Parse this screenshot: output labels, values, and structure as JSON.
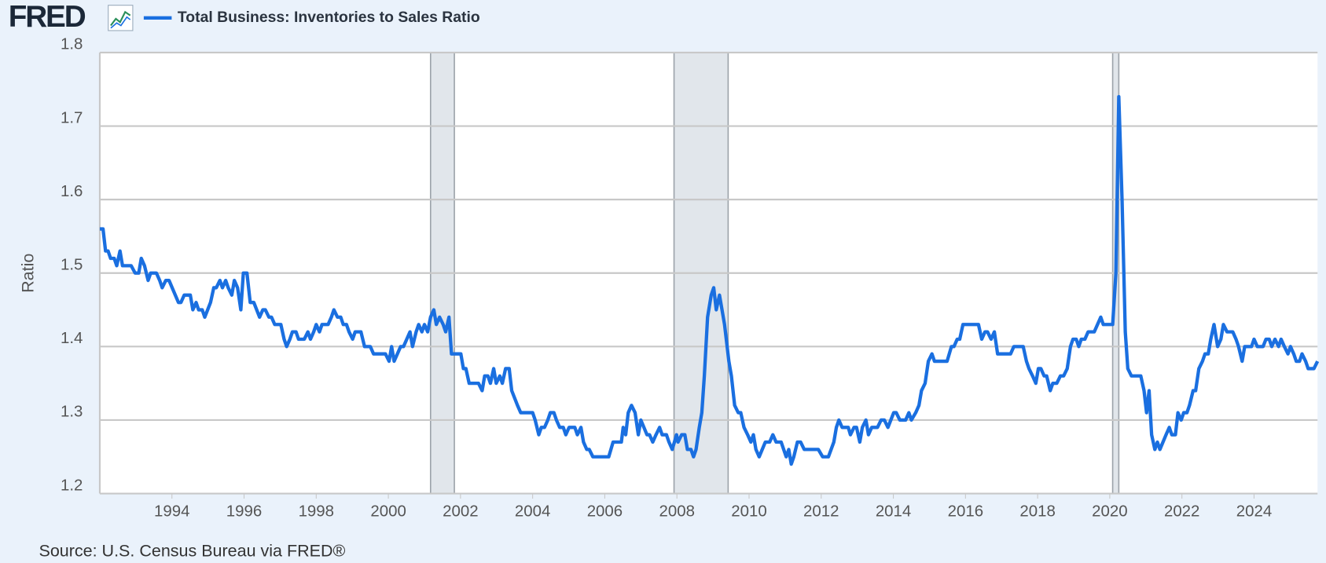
{
  "logo": "FRED",
  "source": "Source: U.S. Census Bureau via FRED®",
  "chart_data": {
    "type": "line",
    "ylabel": "Ratio",
    "xlim": [
      1992.0,
      2025.76
    ],
    "ylim": [
      1.2,
      1.8
    ],
    "xticks": [
      1994,
      1996,
      1998,
      2000,
      2002,
      2004,
      2006,
      2008,
      2010,
      2012,
      2014,
      2016,
      2018,
      2020,
      2022,
      2024
    ],
    "yticks": [
      1.2,
      1.3,
      1.4,
      1.5,
      1.6,
      1.7,
      1.8
    ],
    "grid": true,
    "recessions": [
      [
        2001.17,
        2001.83
      ],
      [
        2007.92,
        2009.42
      ],
      [
        2020.08,
        2020.25
      ]
    ],
    "x": [
      1992.0,
      1992.09,
      1992.16,
      1992.23,
      1992.3,
      1992.4,
      1992.47,
      1992.56,
      1992.63,
      1992.87,
      1992.98,
      1993.08,
      1993.15,
      1993.24,
      1993.34,
      1993.41,
      1993.57,
      1993.66,
      1993.73,
      1993.83,
      1993.92,
      1994.18,
      1994.25,
      1994.34,
      1994.51,
      1994.58,
      1994.67,
      1994.74,
      1994.84,
      1994.91,
      1995.07,
      1995.16,
      1995.23,
      1995.33,
      1995.4,
      1995.49,
      1995.56,
      1995.66,
      1995.73,
      1995.82,
      1995.91,
      1995.98,
      1996.08,
      1996.17,
      1996.27,
      1996.43,
      1996.52,
      1996.59,
      1996.69,
      1996.76,
      1996.85,
      1997.02,
      1997.11,
      1997.18,
      1997.27,
      1997.34,
      1997.44,
      1997.51,
      1997.67,
      1997.77,
      1997.84,
      1997.93,
      1998.0,
      1998.09,
      1998.16,
      1998.33,
      1998.42,
      1998.49,
      1998.59,
      1998.68,
      1998.75,
      1998.84,
      1998.91,
      1999.01,
      1999.08,
      1999.24,
      1999.34,
      1999.5,
      1999.59,
      1999.92,
      2000.02,
      2000.09,
      2000.16,
      2000.25,
      2000.34,
      2000.42,
      2000.51,
      2000.6,
      2000.67,
      2000.77,
      2000.84,
      2000.93,
      2001.0,
      2001.09,
      2001.17,
      2001.26,
      2001.33,
      2001.42,
      2001.52,
      2001.59,
      2001.68,
      2001.75,
      2002.01,
      2002.08,
      2002.15,
      2002.24,
      2002.5,
      2002.6,
      2002.67,
      2002.76,
      2002.83,
      2002.92,
      2002.99,
      2003.09,
      2003.16,
      2003.25,
      2003.35,
      2003.42,
      2003.58,
      2003.67,
      2004.0,
      2004.07,
      2004.17,
      2004.24,
      2004.33,
      2004.42,
      2004.49,
      2004.59,
      2004.66,
      2004.75,
      2004.85,
      2004.92,
      2005.01,
      2005.17,
      2005.24,
      2005.34,
      2005.41,
      2005.5,
      2005.57,
      2005.67,
      2006.11,
      2006.23,
      2006.46,
      2006.51,
      2006.58,
      2006.65,
      2006.74,
      2006.84,
      2006.93,
      2007.0,
      2007.17,
      2007.24,
      2007.33,
      2007.42,
      2007.52,
      2007.59,
      2007.71,
      2007.78,
      2007.87,
      2007.99,
      2008.03,
      2008.13,
      2008.22,
      2008.29,
      2008.39,
      2008.46,
      2008.53,
      2008.62,
      2008.69,
      2008.76,
      2008.85,
      2008.95,
      2009.02,
      2009.09,
      2009.18,
      2009.25,
      2009.32,
      2009.44,
      2009.51,
      2009.6,
      2009.7,
      2009.77,
      2009.86,
      2009.96,
      2010.05,
      2010.12,
      2010.19,
      2010.28,
      2010.45,
      2010.57,
      2010.66,
      2010.75,
      2010.89,
      2011.03,
      2011.1,
      2011.17,
      2011.24,
      2011.34,
      2011.43,
      2011.53,
      2011.92,
      2012.04,
      2012.2,
      2012.35,
      2012.42,
      2012.49,
      2012.58,
      2012.75,
      2012.81,
      2012.91,
      2012.98,
      2013.07,
      2013.14,
      2013.24,
      2013.31,
      2013.4,
      2013.56,
      2013.66,
      2013.75,
      2013.85,
      2014.01,
      2014.08,
      2014.18,
      2014.34,
      2014.43,
      2014.5,
      2014.62,
      2014.71,
      2014.78,
      2014.88,
      2014.97,
      2015.07,
      2015.14,
      2015.49,
      2015.61,
      2015.68,
      2015.77,
      2015.84,
      2015.93,
      2016.36,
      2016.45,
      2016.54,
      2016.61,
      2016.71,
      2016.8,
      2016.89,
      2017.25,
      2017.34,
      2017.6,
      2017.69,
      2017.76,
      2017.86,
      2017.95,
      2018.02,
      2018.09,
      2018.18,
      2018.25,
      2018.35,
      2018.42,
      2018.53,
      2018.63,
      2018.72,
      2018.82,
      2018.91,
      2018.98,
      2019.07,
      2019.14,
      2019.21,
      2019.31,
      2019.4,
      2019.57,
      2019.66,
      2019.75,
      2019.82,
      2020.08,
      2020.17,
      2020.25,
      2020.34,
      2020.43,
      2020.5,
      2020.6,
      2020.86,
      2020.95,
      2021.02,
      2021.09,
      2021.16,
      2021.25,
      2021.32,
      2021.39,
      2021.56,
      2021.65,
      2021.72,
      2021.82,
      2021.89,
      2021.98,
      2022.05,
      2022.14,
      2022.21,
      2022.31,
      2022.38,
      2022.47,
      2022.57,
      2022.64,
      2022.73,
      2022.8,
      2022.89,
      2022.99,
      2023.08,
      2023.15,
      2023.25,
      2023.41,
      2023.5,
      2023.57,
      2023.67,
      2023.74,
      2023.93,
      2024.0,
      2024.09,
      2024.25,
      2024.33,
      2024.42,
      2024.49,
      2024.58,
      2024.68,
      2024.75,
      2024.84,
      2024.94,
      2025.01,
      2025.1,
      2025.17,
      2025.26,
      2025.33,
      2025.43,
      2025.5,
      2025.66,
      2025.76
    ],
    "series": [
      {
        "name": "Total Business: Inventories to Sales Ratio",
        "color": "#1a6fe0",
        "values": [
          1.56,
          1.56,
          1.53,
          1.53,
          1.52,
          1.52,
          1.51,
          1.53,
          1.51,
          1.51,
          1.5,
          1.5,
          1.52,
          1.51,
          1.49,
          1.5,
          1.5,
          1.49,
          1.48,
          1.49,
          1.49,
          1.46,
          1.46,
          1.47,
          1.47,
          1.45,
          1.46,
          1.45,
          1.45,
          1.44,
          1.46,
          1.48,
          1.48,
          1.49,
          1.48,
          1.49,
          1.48,
          1.47,
          1.49,
          1.48,
          1.45,
          1.5,
          1.5,
          1.46,
          1.46,
          1.44,
          1.45,
          1.45,
          1.44,
          1.44,
          1.43,
          1.43,
          1.41,
          1.4,
          1.41,
          1.42,
          1.42,
          1.41,
          1.41,
          1.42,
          1.41,
          1.42,
          1.43,
          1.42,
          1.43,
          1.43,
          1.44,
          1.45,
          1.44,
          1.44,
          1.43,
          1.43,
          1.42,
          1.41,
          1.42,
          1.42,
          1.4,
          1.4,
          1.39,
          1.39,
          1.38,
          1.4,
          1.38,
          1.39,
          1.4,
          1.4,
          1.41,
          1.42,
          1.4,
          1.42,
          1.43,
          1.42,
          1.43,
          1.42,
          1.44,
          1.45,
          1.43,
          1.44,
          1.43,
          1.42,
          1.44,
          1.39,
          1.39,
          1.37,
          1.37,
          1.35,
          1.35,
          1.34,
          1.36,
          1.36,
          1.35,
          1.37,
          1.35,
          1.36,
          1.35,
          1.37,
          1.37,
          1.34,
          1.32,
          1.31,
          1.31,
          1.3,
          1.28,
          1.29,
          1.29,
          1.3,
          1.31,
          1.31,
          1.3,
          1.29,
          1.29,
          1.28,
          1.29,
          1.29,
          1.28,
          1.29,
          1.27,
          1.26,
          1.26,
          1.25,
          1.25,
          1.27,
          1.27,
          1.29,
          1.28,
          1.31,
          1.32,
          1.31,
          1.28,
          1.3,
          1.28,
          1.28,
          1.27,
          1.28,
          1.29,
          1.28,
          1.28,
          1.27,
          1.26,
          1.28,
          1.27,
          1.28,
          1.28,
          1.26,
          1.26,
          1.25,
          1.26,
          1.29,
          1.31,
          1.36,
          1.44,
          1.47,
          1.48,
          1.45,
          1.47,
          1.45,
          1.43,
          1.38,
          1.36,
          1.32,
          1.31,
          1.31,
          1.29,
          1.28,
          1.27,
          1.28,
          1.26,
          1.25,
          1.27,
          1.27,
          1.28,
          1.27,
          1.27,
          1.25,
          1.26,
          1.24,
          1.25,
          1.27,
          1.27,
          1.26,
          1.26,
          1.25,
          1.25,
          1.27,
          1.29,
          1.3,
          1.29,
          1.29,
          1.28,
          1.29,
          1.29,
          1.27,
          1.29,
          1.3,
          1.28,
          1.29,
          1.29,
          1.3,
          1.3,
          1.29,
          1.31,
          1.31,
          1.3,
          1.3,
          1.31,
          1.3,
          1.31,
          1.32,
          1.34,
          1.35,
          1.38,
          1.39,
          1.38,
          1.38,
          1.4,
          1.4,
          1.41,
          1.41,
          1.43,
          1.43,
          1.41,
          1.42,
          1.42,
          1.41,
          1.42,
          1.39,
          1.39,
          1.4,
          1.4,
          1.38,
          1.37,
          1.36,
          1.35,
          1.37,
          1.37,
          1.36,
          1.36,
          1.34,
          1.35,
          1.35,
          1.36,
          1.36,
          1.37,
          1.4,
          1.41,
          1.41,
          1.4,
          1.41,
          1.41,
          1.42,
          1.42,
          1.43,
          1.44,
          1.43,
          1.43,
          1.5,
          1.74,
          1.6,
          1.42,
          1.37,
          1.36,
          1.36,
          1.34,
          1.31,
          1.34,
          1.28,
          1.26,
          1.27,
          1.26,
          1.28,
          1.29,
          1.28,
          1.28,
          1.31,
          1.3,
          1.31,
          1.31,
          1.32,
          1.34,
          1.34,
          1.37,
          1.38,
          1.39,
          1.39,
          1.41,
          1.43,
          1.4,
          1.41,
          1.43,
          1.42,
          1.42,
          1.41,
          1.4,
          1.38,
          1.4,
          1.4,
          1.41,
          1.4,
          1.4,
          1.41,
          1.41,
          1.4,
          1.41,
          1.4,
          1.41,
          1.4,
          1.39,
          1.4,
          1.39,
          1.38,
          1.38,
          1.39,
          1.38,
          1.37,
          1.37,
          1.38
        ]
      }
    ]
  }
}
